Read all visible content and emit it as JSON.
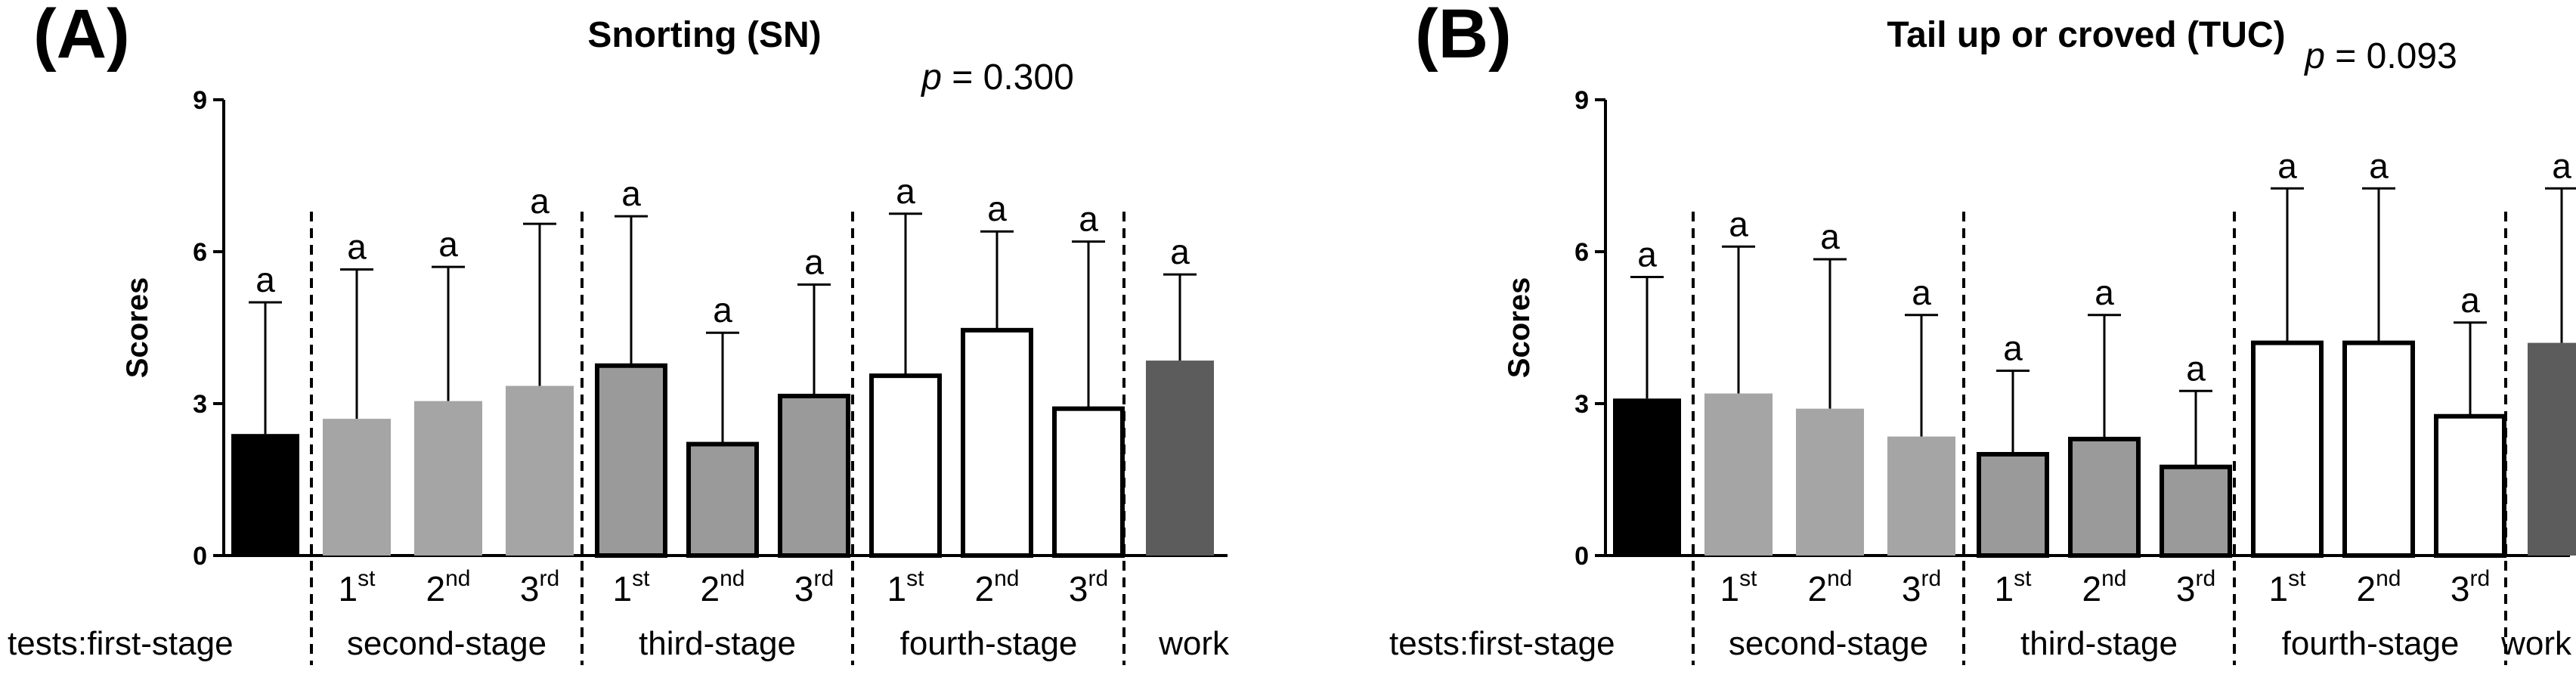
{
  "chart_data": [
    {
      "type": "bar",
      "panel": "(A)",
      "title": "Snorting (SN)",
      "p_label": "p",
      "p_value": " = 0.300",
      "ylabel": "Scores",
      "ylim": [
        0,
        9
      ],
      "yticks": [
        "0",
        "3",
        "6",
        "9"
      ],
      "tests_label": "tests:",
      "stages": [
        "first-stage",
        "second-stage",
        "third-stage",
        "fourth-stage",
        "work"
      ],
      "ordinals": [
        [
          "",
          ""
        ],
        [
          "1",
          "st"
        ],
        [
          "2",
          "nd"
        ],
        [
          "3",
          "rd"
        ],
        [
          "1",
          "st"
        ],
        [
          "2",
          "nd"
        ],
        [
          "3",
          "rd"
        ],
        [
          "1",
          "st"
        ],
        [
          "2",
          "nd"
        ],
        [
          "3",
          "rd"
        ],
        [
          "",
          ""
        ]
      ],
      "stage_index": [
        0,
        1,
        1,
        1,
        2,
        2,
        2,
        3,
        3,
        3,
        4
      ],
      "values": [
        2.4,
        2.7,
        3.05,
        3.35,
        3.75,
        2.2,
        3.15,
        3.55,
        4.45,
        2.9,
        3.85
      ],
      "errors": [
        2.6,
        2.95,
        2.65,
        3.2,
        2.95,
        2.2,
        2.2,
        3.2,
        1.95,
        3.3,
        1.7
      ],
      "labels": [
        "a",
        "a",
        "a",
        "a",
        "a",
        "a",
        "a",
        "a",
        "a",
        "a",
        "a"
      ],
      "stage_colors": [
        "#000000",
        "#a5a5a5",
        "#9a9a9a",
        "#ffffff",
        "#5c5c5c"
      ]
    },
    {
      "type": "bar",
      "panel": "(B)",
      "title": "Tail up or croved (TUC)",
      "p_label": "p",
      "p_value": " = 0.093",
      "ylabel": "Scores",
      "ylim": [
        0,
        9
      ],
      "yticks": [
        "0",
        "3",
        "6",
        "9"
      ],
      "tests_label": "tests:",
      "stages": [
        "first-stage",
        "second-stage",
        "third-stage",
        "fourth-stage",
        "work"
      ],
      "ordinals": [
        [
          "",
          ""
        ],
        [
          "1",
          "st"
        ],
        [
          "2",
          "nd"
        ],
        [
          "3",
          "rd"
        ],
        [
          "1",
          "st"
        ],
        [
          "2",
          "nd"
        ],
        [
          "3",
          "rd"
        ],
        [
          "1",
          "st"
        ],
        [
          "2",
          "nd"
        ],
        [
          "3",
          "rd"
        ],
        [
          "",
          ""
        ]
      ],
      "stage_index": [
        0,
        1,
        1,
        1,
        2,
        2,
        2,
        3,
        3,
        3,
        4
      ],
      "values": [
        3.1,
        3.2,
        2.9,
        2.35,
        2.0,
        2.3,
        1.75,
        4.2,
        4.2,
        2.75,
        4.2
      ],
      "errors": [
        2.4,
        2.9,
        2.95,
        2.4,
        1.65,
        2.45,
        1.5,
        3.05,
        3.05,
        1.85,
        3.05
      ],
      "labels": [
        "a",
        "a",
        "a",
        "a",
        "a",
        "a",
        "a",
        "a",
        "a",
        "a",
        "a"
      ],
      "stage_colors": [
        "#000000",
        "#a5a5a5",
        "#9a9a9a",
        "#ffffff",
        "#5c5c5c"
      ]
    }
  ]
}
